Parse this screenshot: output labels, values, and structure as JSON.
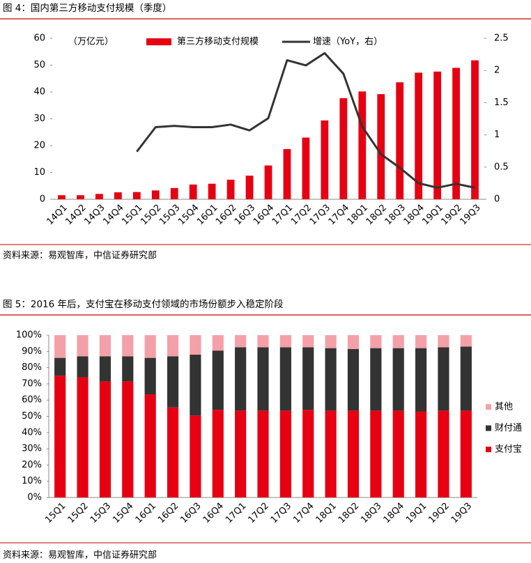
{
  "chart_data": [
    {
      "type": "bar",
      "title": "图 4：国内第三方移动支付规模（季度）",
      "unit_label": "（万亿元）",
      "source": "资料来源：易观智库，中信证券研究部",
      "legend": "top",
      "categories": [
        "14Q1",
        "14Q2",
        "14Q3",
        "14Q4",
        "15Q1",
        "15Q2",
        "15Q3",
        "15Q4",
        "16Q1",
        "16Q2",
        "16Q3",
        "16Q4",
        "17Q1",
        "17Q2",
        "17Q3",
        "17Q4",
        "18Q1",
        "18Q2",
        "18Q3",
        "18Q4",
        "19Q1",
        "19Q2",
        "19Q3"
      ],
      "series": [
        {
          "name": "第三方移动支付规模",
          "type": "bar",
          "color": "#e60012",
          "values": [
            1.5,
            1.5,
            2.0,
            2.6,
            2.7,
            3.3,
            4.2,
            5.5,
            5.8,
            7.3,
            8.8,
            12.6,
            18.7,
            23.0,
            29.4,
            37.7,
            40.2,
            39.2,
            43.6,
            47.2,
            47.6,
            49.0,
            51.8
          ]
        },
        {
          "name": "增速（YoY，右）",
          "type": "line",
          "axis": "y2",
          "color": "#333333",
          "values": [
            null,
            null,
            null,
            null,
            0.74,
            1.12,
            1.14,
            1.12,
            1.12,
            1.16,
            1.07,
            1.26,
            2.16,
            2.08,
            2.27,
            1.95,
            1.13,
            0.7,
            0.49,
            0.25,
            0.18,
            0.24,
            0.18
          ]
        }
      ],
      "ylim": [
        0,
        60
      ],
      "yticks": [
        0,
        10,
        20,
        30,
        40,
        50,
        60
      ],
      "y2lim": [
        0,
        2.5
      ],
      "y2ticks": [
        0,
        0.5,
        1,
        1.5,
        2,
        2.5
      ]
    },
    {
      "type": "stacked_bar",
      "title": "图 5：2016 年后，支付宝在移动支付领域的市场份额步入稳定阶段",
      "source": "资料来源：易观智库，中信证券研究部",
      "legend": "right",
      "categories": [
        "15Q1",
        "15Q2",
        "15Q3",
        "15Q4",
        "16Q1",
        "16Q2",
        "16Q3",
        "16Q4",
        "17Q1",
        "17Q2",
        "17Q3",
        "17Q4",
        "18Q1",
        "18Q2",
        "18Q3",
        "18Q4",
        "19Q1",
        "19Q2",
        "19Q3"
      ],
      "series": [
        {
          "name": "支付宝",
          "color": "#e60012",
          "values": [
            75,
            74,
            71.5,
            71.5,
            63.5,
            55.5,
            50.5,
            54,
            53.5,
            53.5,
            53.5,
            54,
            53.5,
            53.5,
            53.5,
            53.5,
            53,
            53.5,
            53.5
          ]
        },
        {
          "name": "财付通",
          "color": "#333333",
          "values": [
            11,
            13,
            15.5,
            15.5,
            22.5,
            31.5,
            37.5,
            36.5,
            39,
            39,
            39,
            38.5,
            38.5,
            38,
            38.5,
            38.5,
            39,
            39,
            39.5
          ]
        },
        {
          "name": "其他",
          "color": "#f4a0a8",
          "values": [
            14,
            13,
            13,
            13,
            14,
            13,
            12,
            9.5,
            7.5,
            7.5,
            7.5,
            7.5,
            8,
            8.5,
            8,
            8,
            8,
            7.5,
            7
          ]
        }
      ],
      "ylim": [
        0,
        100
      ],
      "yticks": [
        {
          "value": 0,
          "label": "0%"
        },
        {
          "value": 10,
          "label": "10%"
        },
        {
          "value": 20,
          "label": "20%"
        },
        {
          "value": 30,
          "label": "30%"
        },
        {
          "value": 40,
          "label": "40%"
        },
        {
          "value": 50,
          "label": "50%"
        },
        {
          "value": 60,
          "label": "60%"
        },
        {
          "value": 70,
          "label": "70%"
        },
        {
          "value": 80,
          "label": "80%"
        },
        {
          "value": 90,
          "label": "90%"
        },
        {
          "value": 100,
          "label": "100%"
        }
      ]
    }
  ]
}
